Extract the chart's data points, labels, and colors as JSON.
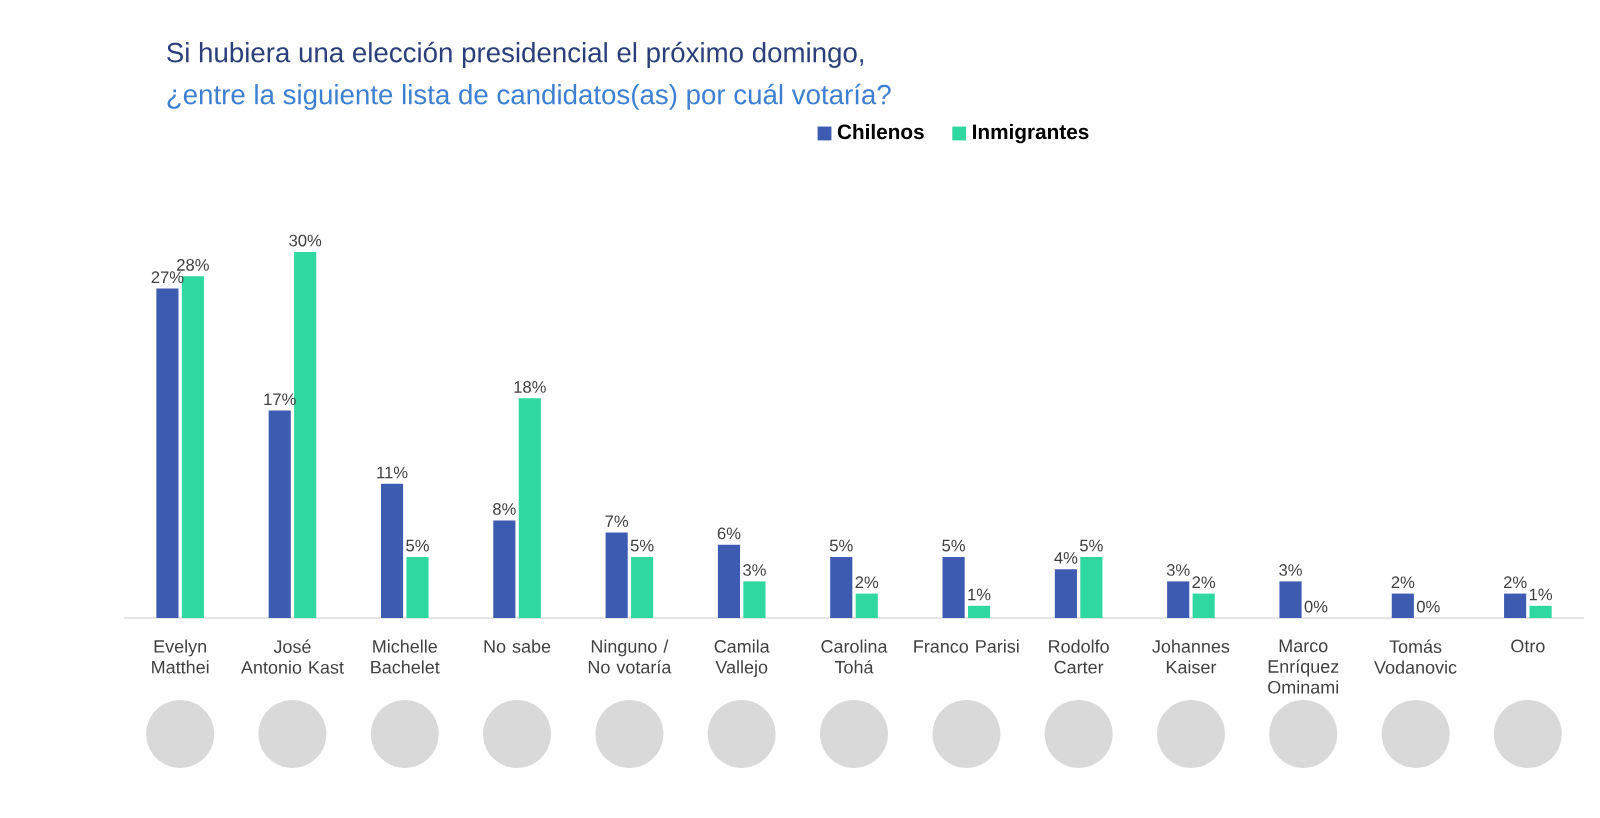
{
  "chart_data": {
    "type": "bar",
    "title": "Si hubiera una elección presidencial el próximo domingo,",
    "subtitle": "¿entre la siguiente lista de candidatos(as) por cuál votaría?",
    "categories": [
      "Evelyn Matthei",
      "José Antonio Kast",
      "Michelle Bachelet",
      "No sabe",
      "Ninguno / No votaría",
      "Camila Vallejo",
      "Carolina Tohá",
      "Franco Parisi",
      "Rodolfo Carter",
      "Johannes Kaiser",
      "Marco Enríquez Ominami",
      "Tomás Vodanovic",
      "Otro"
    ],
    "series": [
      {
        "name": "Chilenos",
        "color": "#3d5bb0",
        "values": [
          27,
          17,
          11,
          8,
          7,
          6,
          5,
          5,
          4,
          3,
          3,
          2,
          2
        ],
        "value_labels": [
          "27%",
          "17%",
          "11%",
          "8%",
          "7%",
          "6%",
          "5%",
          "5%",
          "4%",
          "3%",
          "3%",
          "2%",
          "2%"
        ]
      },
      {
        "name": "Inmigrantes",
        "color": "#2ed8a0",
        "values": [
          28,
          30,
          5,
          18,
          5,
          3,
          2,
          1,
          5,
          2,
          0,
          0,
          1
        ],
        "value_labels": [
          "28%",
          "30%",
          "5%",
          "18%",
          "5%",
          "3%",
          "2%",
          "1%",
          "5%",
          "2%",
          "0%",
          "0%",
          "1%"
        ]
      }
    ],
    "legend": "top"
  }
}
